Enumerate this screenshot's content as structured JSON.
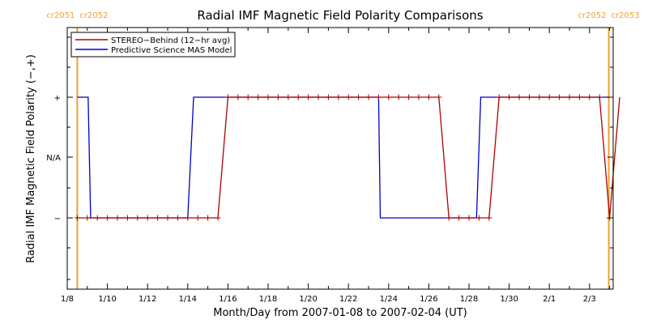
{
  "chart_data": {
    "type": "line",
    "title": "Radial IMF Magnetic Field Polarity Comparisons",
    "xlabel": "Month/Day from 2007-01-08 to 2007-02-04 (UT)",
    "ylabel": "Radial IMF Magnetic Field Polarity (−,+)",
    "xlim": [
      "2007-01-08T00:00",
      "2007-02-04T00:00"
    ],
    "x_ticks": [
      "1/8",
      "1/10",
      "1/12",
      "1/14",
      "1/16",
      "1/18",
      "1/20",
      "1/22",
      "1/24",
      "1/26",
      "1/28",
      "1/30",
      "2/1",
      "2/3"
    ],
    "y_categories": [
      "−",
      "N/A",
      "+"
    ],
    "carrington_markers": [
      {
        "date": "2007-01-08T12:00",
        "left": "cr2051",
        "right": "cr2052"
      },
      {
        "date": "2007-02-03T23:00",
        "left": "cr2052",
        "right": "cr2053"
      }
    ],
    "legend": {
      "position": "top-left"
    },
    "colors": {
      "stereo": "#b00000",
      "mas": "#0000c8",
      "cr_line": "#f0a030"
    },
    "series": [
      {
        "name": "STEREO−Behind (12−hr avg)",
        "marker": "plus",
        "points": [
          [
            "2007-01-08T12:00",
            -1
          ],
          [
            "2007-01-09T00:00",
            -1
          ],
          [
            "2007-01-09T12:00",
            -1
          ],
          [
            "2007-01-10T00:00",
            -1
          ],
          [
            "2007-01-10T12:00",
            -1
          ],
          [
            "2007-01-11T00:00",
            -1
          ],
          [
            "2007-01-11T12:00",
            -1
          ],
          [
            "2007-01-12T00:00",
            -1
          ],
          [
            "2007-01-12T12:00",
            -1
          ],
          [
            "2007-01-13T00:00",
            -1
          ],
          [
            "2007-01-13T12:00",
            -1
          ],
          [
            "2007-01-14T00:00",
            -1
          ],
          [
            "2007-01-14T12:00",
            -1
          ],
          [
            "2007-01-15T00:00",
            -1
          ],
          [
            "2007-01-15T12:00",
            -1
          ],
          [
            "2007-01-16T00:00",
            1
          ],
          [
            "2007-01-16T12:00",
            1
          ],
          [
            "2007-01-17T00:00",
            1
          ],
          [
            "2007-01-17T12:00",
            1
          ],
          [
            "2007-01-18T00:00",
            1
          ],
          [
            "2007-01-18T12:00",
            1
          ],
          [
            "2007-01-19T00:00",
            1
          ],
          [
            "2007-01-19T12:00",
            1
          ],
          [
            "2007-01-20T00:00",
            1
          ],
          [
            "2007-01-20T12:00",
            1
          ],
          [
            "2007-01-21T00:00",
            1
          ],
          [
            "2007-01-21T12:00",
            1
          ],
          [
            "2007-01-22T00:00",
            1
          ],
          [
            "2007-01-22T12:00",
            1
          ],
          [
            "2007-01-23T00:00",
            1
          ],
          [
            "2007-01-23T12:00",
            1
          ],
          [
            "2007-01-24T00:00",
            1
          ],
          [
            "2007-01-24T12:00",
            1
          ],
          [
            "2007-01-25T00:00",
            1
          ],
          [
            "2007-01-25T12:00",
            1
          ],
          [
            "2007-01-26T00:00",
            1
          ],
          [
            "2007-01-26T12:00",
            1
          ],
          [
            "2007-01-27T00:00",
            -1
          ],
          [
            "2007-01-27T12:00",
            -1
          ],
          [
            "2007-01-28T00:00",
            -1
          ],
          [
            "2007-01-28T12:00",
            -1
          ],
          [
            "2007-01-29T00:00",
            -1
          ],
          [
            "2007-01-29T12:00",
            1
          ],
          [
            "2007-01-30T00:00",
            1
          ],
          [
            "2007-01-30T12:00",
            1
          ],
          [
            "2007-01-31T00:00",
            1
          ],
          [
            "2007-01-31T12:00",
            1
          ],
          [
            "2007-02-01T00:00",
            1
          ],
          [
            "2007-02-01T12:00",
            1
          ],
          [
            "2007-02-02T00:00",
            1
          ],
          [
            "2007-02-02T12:00",
            1
          ],
          [
            "2007-02-03T00:00",
            1
          ],
          [
            "2007-02-03T12:00",
            1
          ],
          [
            "2007-02-04T00:00",
            -1
          ],
          [
            "2007-02-04T12:00",
            1
          ]
        ]
      },
      {
        "name": "Predictive Science MAS Model",
        "marker": "none",
        "points": [
          [
            "2007-01-08T12:00",
            1
          ],
          [
            "2007-01-09T01:00",
            1
          ],
          [
            "2007-01-09T04:00",
            -1
          ],
          [
            "2007-01-14T00:00",
            -1
          ],
          [
            "2007-01-14T07:00",
            1
          ],
          [
            "2007-01-23T12:00",
            1
          ],
          [
            "2007-01-23T14:00",
            -1
          ],
          [
            "2007-01-28T09:00",
            -1
          ],
          [
            "2007-01-28T14:00",
            1
          ],
          [
            "2007-02-03T23:00",
            1
          ]
        ]
      }
    ]
  }
}
